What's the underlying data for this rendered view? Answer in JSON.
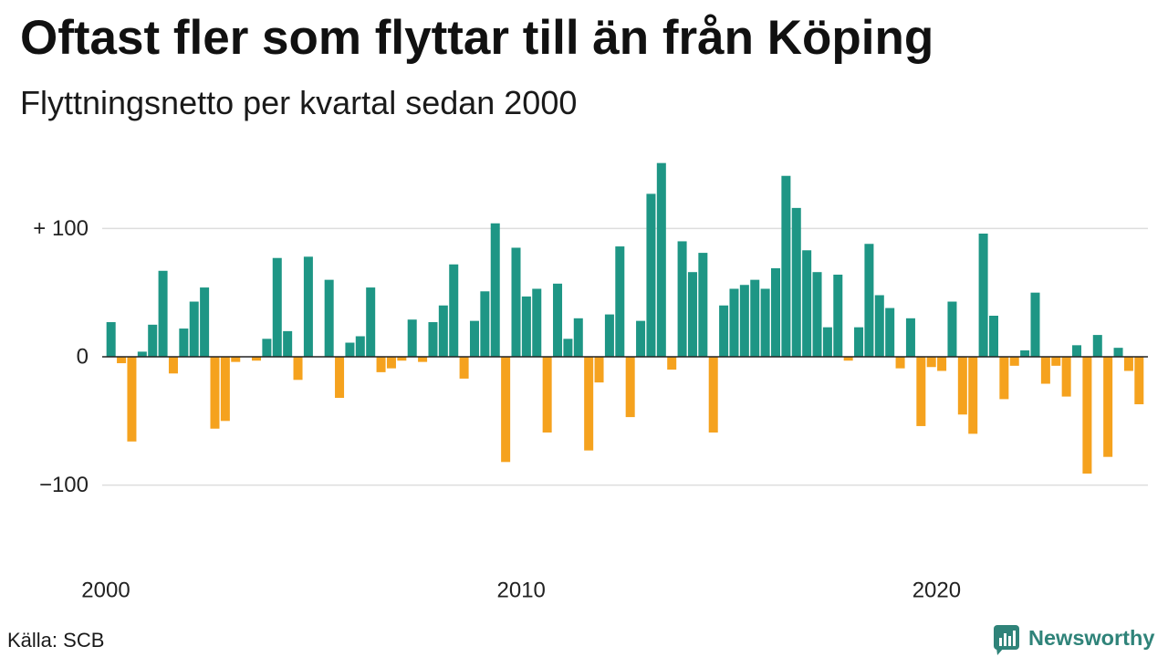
{
  "chart_data": {
    "type": "bar",
    "title": "Oftast fler som flyttar till än från Köping",
    "subtitle": "Flyttningsnetto per kvartal sedan 2000",
    "x": [
      2000,
      2000.25,
      2000.5,
      2000.75,
      2001,
      2001.25,
      2001.5,
      2001.75,
      2002,
      2002.25,
      2002.5,
      2002.75,
      2003,
      2003.25,
      2003.5,
      2003.75,
      2004,
      2004.25,
      2004.5,
      2004.75,
      2005,
      2005.25,
      2005.5,
      2005.75,
      2006,
      2006.25,
      2006.5,
      2006.75,
      2007,
      2007.25,
      2007.5,
      2007.75,
      2008,
      2008.25,
      2008.5,
      2008.75,
      2009,
      2009.25,
      2009.5,
      2009.75,
      2010,
      2010.25,
      2010.5,
      2010.75,
      2011,
      2011.25,
      2011.5,
      2011.75,
      2012,
      2012.25,
      2012.5,
      2012.75,
      2013,
      2013.25,
      2013.5,
      2013.75,
      2014,
      2014.25,
      2014.5,
      2014.75,
      2015,
      2015.25,
      2015.5,
      2015.75,
      2016,
      2016.25,
      2016.5,
      2016.75,
      2017,
      2017.25,
      2017.5,
      2017.75,
      2018,
      2018.25,
      2018.5,
      2018.75,
      2019,
      2019.25,
      2019.5,
      2019.75,
      2020,
      2020.25,
      2020.5,
      2020.75,
      2021,
      2021.25,
      2021.5,
      2021.75,
      2022,
      2022.25,
      2022.5,
      2022.75,
      2023,
      2023.25,
      2023.5,
      2023.75,
      2024,
      2024.25,
      2024.5,
      2024.75
    ],
    "values": [
      27,
      -5,
      -66,
      4,
      25,
      67,
      -13,
      22,
      43,
      54,
      -56,
      -50,
      -4,
      0,
      -3,
      14,
      77,
      20,
      -18,
      78,
      0,
      60,
      -32,
      11,
      16,
      54,
      -12,
      -9,
      -3,
      29,
      -4,
      27,
      40,
      72,
      -17,
      28,
      51,
      104,
      -82,
      85,
      47,
      53,
      -59,
      57,
      14,
      30,
      -73,
      -20,
      33,
      86,
      -47,
      28,
      127,
      151,
      -10,
      90,
      66,
      81,
      -59,
      40,
      53,
      56,
      60,
      53,
      69,
      141,
      116,
      83,
      66,
      23,
      64,
      -3,
      23,
      88,
      48,
      38,
      -9,
      30,
      -54,
      -8,
      -11,
      43,
      -45,
      -60,
      96,
      32,
      -33,
      -7,
      5,
      50,
      -21,
      -7,
      -31,
      9,
      -91,
      17,
      -78,
      7,
      -11,
      -37
    ],
    "x_ticks": [
      {
        "value": 2000,
        "label": "2000"
      },
      {
        "value": 2010,
        "label": "2010"
      },
      {
        "value": 2020,
        "label": "2020"
      }
    ],
    "y_ticks": [
      {
        "value": 100,
        "label": "+ 100"
      },
      {
        "value": 0,
        "label": "0"
      },
      {
        "value": -100,
        "label": "−100"
      }
    ],
    "xlim": [
      2000,
      2025
    ],
    "ylim": [
      -160,
      160
    ],
    "grid": true,
    "colors": {
      "positive": "#1e9685",
      "negative": "#f5a21e",
      "gridline": "#dddddd",
      "zero_line": "#222222"
    }
  },
  "source": "Källa: SCB",
  "brand": {
    "name": "Newsworthy",
    "color": "#2f8379",
    "icon": "bar-chart-speech-bubble-icon"
  }
}
